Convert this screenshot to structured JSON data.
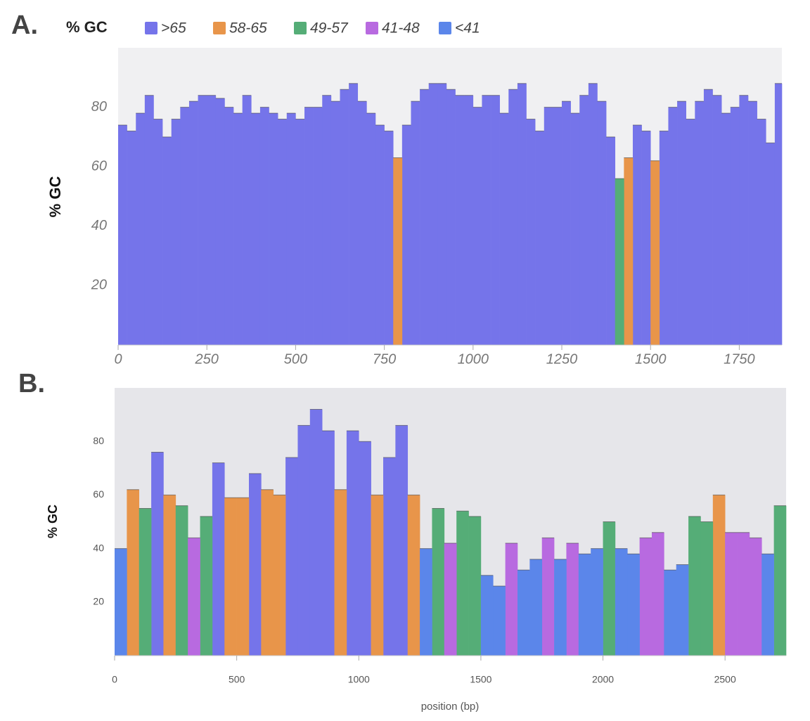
{
  "chart_data": [
    {
      "type": "bar",
      "panel_label": "A.",
      "legend_title": "% GC",
      "ylabel": "% GC",
      "x": [
        0,
        25,
        50,
        75,
        100,
        125,
        150,
        175,
        200,
        225,
        250,
        275,
        300,
        325,
        350,
        375,
        400,
        425,
        450,
        475,
        500,
        525,
        550,
        575,
        600,
        625,
        650,
        675,
        700,
        725,
        750,
        775,
        800,
        825,
        850,
        875,
        900,
        925,
        950,
        975,
        1000,
        1025,
        1050,
        1075,
        1100,
        1125,
        1150,
        1175,
        1200,
        1225,
        1250,
        1275,
        1300,
        1325,
        1350,
        1375,
        1400,
        1425,
        1450,
        1475,
        1500,
        1525,
        1550,
        1575,
        1600,
        1625,
        1650,
        1675,
        1700,
        1725,
        1750,
        1775,
        1800,
        1825,
        1850
      ],
      "xlim": [
        0,
        1870
      ],
      "xticks": [
        0,
        250,
        500,
        750,
        1000,
        1250,
        1500,
        1750
      ],
      "ylim": [
        0,
        100
      ],
      "yticks": [
        20,
        40,
        60,
        80
      ],
      "grid": false,
      "series": [
        {
          "name": ">65",
          "color": "#7574ea",
          "values": [
            74,
            72,
            78,
            84,
            76,
            70,
            76,
            80,
            82,
            84,
            84,
            83,
            80,
            78,
            84,
            78,
            80,
            78,
            76,
            78,
            76,
            80,
            80,
            84,
            82,
            86,
            88,
            82,
            78,
            74,
            72,
            null,
            74,
            82,
            86,
            88,
            88,
            86,
            84,
            84,
            80,
            84,
            84,
            78,
            86,
            88,
            76,
            72,
            80,
            80,
            82,
            78,
            84,
            88,
            82,
            70,
            null,
            null,
            74,
            72,
            null,
            72,
            80,
            82,
            76,
            82,
            86,
            84,
            78,
            80,
            84,
            82,
            76,
            68,
            88
          ]
        },
        {
          "name": "58-65",
          "color": "#e8954a",
          "values": [
            null,
            null,
            null,
            null,
            null,
            null,
            null,
            null,
            null,
            null,
            null,
            null,
            null,
            null,
            null,
            null,
            null,
            null,
            null,
            null,
            null,
            null,
            null,
            null,
            null,
            null,
            null,
            null,
            null,
            null,
            null,
            63,
            null,
            null,
            null,
            null,
            null,
            null,
            null,
            null,
            null,
            null,
            null,
            null,
            null,
            null,
            null,
            null,
            null,
            null,
            null,
            null,
            null,
            null,
            null,
            null,
            null,
            63,
            null,
            null,
            62,
            null,
            null,
            null,
            null,
            null,
            null,
            null,
            null,
            null,
            null,
            null,
            null,
            null,
            null
          ]
        },
        {
          "name": "49-57",
          "color": "#55ad77",
          "values": [
            null,
            null,
            null,
            null,
            null,
            null,
            null,
            null,
            null,
            null,
            null,
            null,
            null,
            null,
            null,
            null,
            null,
            null,
            null,
            null,
            null,
            null,
            null,
            null,
            null,
            null,
            null,
            null,
            null,
            null,
            null,
            null,
            null,
            null,
            null,
            null,
            null,
            null,
            null,
            null,
            null,
            null,
            null,
            null,
            null,
            null,
            null,
            null,
            null,
            null,
            null,
            null,
            null,
            null,
            null,
            null,
            56,
            null,
            null,
            null,
            null,
            null,
            null,
            null,
            null,
            null,
            null,
            null,
            null,
            null,
            null,
            null,
            null,
            null,
            null
          ]
        },
        {
          "name": "41-48",
          "color": "#b86ae0",
          "values": [
            null,
            null,
            null,
            null,
            null,
            null,
            null,
            null,
            null,
            null,
            null,
            null,
            null,
            null,
            null,
            null,
            null,
            null,
            null,
            null,
            null,
            null,
            null,
            null,
            null,
            null,
            null,
            null,
            null,
            null,
            null,
            null,
            null,
            null,
            null,
            null,
            null,
            null,
            null,
            null,
            null,
            null,
            null,
            null,
            null,
            null,
            null,
            null,
            null,
            null,
            null,
            null,
            null,
            null,
            null,
            null,
            null,
            null,
            null,
            null,
            null,
            null,
            null,
            null,
            null,
            null,
            null,
            null,
            null,
            null,
            null,
            null,
            null,
            null,
            null
          ]
        },
        {
          "name": "<41",
          "color": "#5b86ea",
          "values": [
            null,
            null,
            null,
            null,
            null,
            null,
            null,
            null,
            null,
            null,
            null,
            null,
            null,
            null,
            null,
            null,
            null,
            null,
            null,
            null,
            null,
            null,
            null,
            null,
            null,
            null,
            null,
            null,
            null,
            null,
            null,
            null,
            null,
            null,
            null,
            null,
            null,
            null,
            null,
            null,
            null,
            null,
            null,
            null,
            null,
            null,
            null,
            null,
            null,
            null,
            null,
            null,
            null,
            null,
            null,
            null,
            null,
            null,
            null,
            null,
            null,
            null,
            null,
            null,
            null,
            null,
            null,
            null,
            null,
            null,
            null,
            null,
            null,
            null,
            null
          ]
        }
      ]
    },
    {
      "type": "bar",
      "panel_label": "B.",
      "ylabel": "% GC",
      "xlabel": "position (bp)",
      "x": [
        0,
        50,
        100,
        150,
        200,
        250,
        300,
        350,
        400,
        450,
        500,
        550,
        600,
        650,
        700,
        750,
        800,
        850,
        900,
        950,
        1000,
        1050,
        1100,
        1150,
        1200,
        1250,
        1300,
        1350,
        1400,
        1450,
        1500,
        1550,
        1600,
        1650,
        1700,
        1750,
        1800,
        1850,
        1900,
        1950,
        2000,
        2050,
        2100,
        2150,
        2200,
        2250,
        2300,
        2350,
        2400,
        2450,
        2500,
        2550,
        2600,
        2650,
        2700
      ],
      "xlim": [
        0,
        2750
      ],
      "xticks": [
        0,
        500,
        1000,
        1500,
        2000,
        2500
      ],
      "ylim": [
        0,
        100
      ],
      "yticks": [
        20,
        40,
        60,
        80
      ],
      "grid": false,
      "series": [
        {
          "color": "#7574ea",
          "values": [
            null,
            null,
            null,
            76,
            null,
            null,
            null,
            null,
            72,
            null,
            null,
            68,
            null,
            null,
            74,
            86,
            92,
            84,
            null,
            84,
            80,
            null,
            74,
            86,
            null,
            null,
            null,
            null,
            null,
            null,
            null,
            null,
            null,
            null,
            null,
            null,
            null,
            null,
            null,
            null,
            null,
            null,
            null,
            null,
            null,
            null,
            null,
            null,
            null,
            null,
            null,
            null,
            null,
            null,
            null
          ]
        },
        {
          "color": "#e8954a",
          "values": [
            null,
            62,
            null,
            null,
            60,
            null,
            null,
            null,
            null,
            59,
            59,
            null,
            62,
            60,
            null,
            null,
            null,
            null,
            62,
            null,
            null,
            60,
            null,
            null,
            60,
            null,
            null,
            null,
            null,
            null,
            null,
            null,
            null,
            null,
            null,
            null,
            null,
            null,
            null,
            null,
            null,
            null,
            null,
            null,
            null,
            null,
            null,
            null,
            null,
            60,
            null,
            null,
            null,
            null,
            null
          ]
        },
        {
          "color": "#55ad77",
          "values": [
            null,
            null,
            55,
            null,
            null,
            56,
            null,
            52,
            null,
            null,
            null,
            null,
            null,
            null,
            null,
            null,
            null,
            null,
            null,
            null,
            null,
            null,
            null,
            null,
            null,
            null,
            55,
            null,
            54,
            52,
            null,
            null,
            null,
            null,
            null,
            null,
            null,
            null,
            null,
            null,
            50,
            null,
            null,
            null,
            null,
            null,
            null,
            52,
            50,
            null,
            null,
            null,
            null,
            null,
            56
          ]
        },
        {
          "color": "#b86ae0",
          "values": [
            null,
            null,
            null,
            null,
            null,
            null,
            44,
            null,
            null,
            null,
            null,
            null,
            null,
            null,
            null,
            null,
            null,
            null,
            null,
            null,
            null,
            null,
            null,
            null,
            null,
            null,
            null,
            42,
            null,
            null,
            null,
            null,
            42,
            null,
            null,
            44,
            null,
            42,
            null,
            null,
            null,
            null,
            null,
            44,
            46,
            null,
            null,
            null,
            null,
            null,
            46,
            46,
            44,
            null,
            null
          ]
        },
        {
          "color": "#5b86ea",
          "values": [
            40,
            null,
            null,
            null,
            null,
            null,
            null,
            null,
            null,
            null,
            null,
            null,
            null,
            null,
            null,
            null,
            null,
            null,
            null,
            null,
            null,
            null,
            null,
            null,
            null,
            40,
            null,
            null,
            null,
            null,
            30,
            26,
            null,
            32,
            36,
            null,
            36,
            null,
            38,
            40,
            null,
            40,
            38,
            null,
            null,
            32,
            34,
            null,
            null,
            null,
            null,
            null,
            null,
            38,
            null
          ]
        }
      ]
    }
  ]
}
